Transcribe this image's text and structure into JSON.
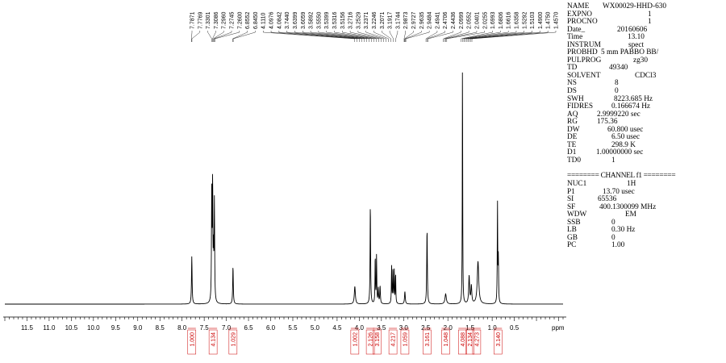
{
  "chart_data": {
    "type": "line",
    "xlabel": "ppm",
    "xlim": [
      12.0,
      -0.6
    ],
    "x_ticks": [
      "11.5",
      "11.0",
      "10.5",
      "10.0",
      "9.5",
      "9.0",
      "8.5",
      "8.0",
      "7.5",
      "7.0",
      "6.5",
      "6.0",
      "5.5",
      "5.0",
      "4.5",
      "4.0",
      "3.5",
      "3.0",
      "2.5",
      "2.0",
      "1.5",
      "1.0",
      "0.5"
    ],
    "peak_labels": [
      "7.7871",
      "7.7769",
      "7.3301",
      "7.3086",
      "7.2960",
      "7.2745",
      "7.2600",
      "6.8552",
      "6.8450",
      "4.1110",
      "4.0976",
      "4.0842",
      "3.7440",
      "3.6399",
      "3.6059",
      "3.5892",
      "3.5550",
      "3.5399",
      "3.5316",
      "3.5156",
      "3.2716",
      "3.2529",
      "3.2371",
      "3.2246",
      "3.2071",
      "3.1917",
      "3.1744",
      "2.9873",
      "2.9727",
      "2.9635",
      "2.9484",
      "2.4941",
      "2.4706",
      "2.4436",
      "2.0999",
      "2.0552",
      "2.0401",
      "2.0255",
      "1.6993",
      "1.6806",
      "1.6616",
      "1.6358",
      "1.5292",
      "1.5103",
      "1.4900",
      "1.4750",
      "1.4570"
    ],
    "peaks": [
      {
        "ppm": 7.78,
        "height": 0.19,
        "width": 0.008
      },
      {
        "ppm": 7.33,
        "height": 0.42,
        "width": 0.007
      },
      {
        "ppm": 7.31,
        "height": 0.46,
        "width": 0.007
      },
      {
        "ppm": 7.29,
        "height": 0.18,
        "width": 0.006
      },
      {
        "ppm": 7.27,
        "height": 0.4,
        "width": 0.007
      },
      {
        "ppm": 6.85,
        "height": 0.15,
        "width": 0.008
      },
      {
        "ppm": 4.1,
        "height": 0.07,
        "width": 0.014
      },
      {
        "ppm": 3.75,
        "height": 0.4,
        "width": 0.007
      },
      {
        "ppm": 3.64,
        "height": 0.19,
        "width": 0.006
      },
      {
        "ppm": 3.61,
        "height": 0.19,
        "width": 0.006
      },
      {
        "ppm": 3.57,
        "height": 0.06,
        "width": 0.008
      },
      {
        "ppm": 3.53,
        "height": 0.07,
        "width": 0.008
      },
      {
        "ppm": 3.27,
        "height": 0.15,
        "width": 0.006
      },
      {
        "ppm": 3.24,
        "height": 0.14,
        "width": 0.006
      },
      {
        "ppm": 3.21,
        "height": 0.13,
        "width": 0.006
      },
      {
        "ppm": 3.18,
        "height": 0.12,
        "width": 0.006
      },
      {
        "ppm": 2.97,
        "height": 0.05,
        "width": 0.01
      },
      {
        "ppm": 2.47,
        "height": 0.3,
        "width": 0.008
      },
      {
        "ppm": 2.05,
        "height": 0.04,
        "width": 0.018
      },
      {
        "ppm": 1.67,
        "height": 1.0,
        "width": 0.005
      },
      {
        "ppm": 1.52,
        "height": 0.11,
        "width": 0.012
      },
      {
        "ppm": 1.47,
        "height": 0.07,
        "width": 0.012
      },
      {
        "ppm": 1.32,
        "height": 0.17,
        "width": 0.02
      },
      {
        "ppm": 0.88,
        "height": 0.4,
        "width": 0.006
      },
      {
        "ppm": 0.86,
        "height": 0.18,
        "width": 0.006
      }
    ],
    "integrals": [
      {
        "ppm": 7.78,
        "value": "1.000"
      },
      {
        "ppm": 7.3,
        "value": "4.134"
      },
      {
        "ppm": 6.85,
        "value": "1.029"
      },
      {
        "ppm": 4.1,
        "value": "1.002"
      },
      {
        "ppm": 3.75,
        "value": "2.126"
      },
      {
        "ppm": 3.6,
        "value": "3.158"
      },
      {
        "ppm": 3.24,
        "value": "4.217"
      },
      {
        "ppm": 2.97,
        "value": "1.059"
      },
      {
        "ppm": 2.47,
        "value": "3.161"
      },
      {
        "ppm": 2.05,
        "value": "1.048"
      },
      {
        "ppm": 1.67,
        "value": "4.088"
      },
      {
        "ppm": 1.5,
        "value": "2.134"
      },
      {
        "ppm": 1.35,
        "value": "4.273"
      },
      {
        "ppm": 0.87,
        "value": "3.140"
      }
    ],
    "colors": {
      "spectrum": "#000000",
      "integral": "#cc0000"
    }
  },
  "params": [
    {
      "key": "NAME",
      "value": "WX00029-HHD-630",
      "vx": 44
    },
    {
      "key": "EXPNO",
      "value": "1",
      "vx": 100
    },
    {
      "key": "PROCNO",
      "value": "1",
      "vx": 100
    },
    {
      "key": "Date_",
      "value": "20160606",
      "vx": 62
    },
    {
      "key": "Time",
      "value": "13.10",
      "vx": 75
    },
    {
      "key": "INSTRUM",
      "value": "spect",
      "vx": 76
    },
    {
      "key": "PROBHD",
      "value": "5 mm PABBO BB/",
      "vx": 42
    },
    {
      "key": "PULPROG",
      "value": "zg30",
      "vx": 82
    },
    {
      "key": "TD",
      "value": "49340",
      "vx": 52
    },
    {
      "key": "SOLVENT",
      "value": "CDCl3",
      "vx": 84
    },
    {
      "key": "NS",
      "value": "8",
      "vx": 59
    },
    {
      "key": "DS",
      "value": "0",
      "vx": 59
    },
    {
      "key": "SWH",
      "value": "8223.685 Hz",
      "vx": 58
    },
    {
      "key": "FIDRES",
      "value": "0.166674 Hz",
      "vx": 55
    },
    {
      "key": "AQ",
      "value": "2.9999220 sec",
      "vx": 37
    },
    {
      "key": "RG",
      "value": "175.36",
      "vx": 37
    },
    {
      "key": "DW",
      "value": "60.800 usec",
      "vx": 50
    },
    {
      "key": "DE",
      "value": "6.50 usec",
      "vx": 55
    },
    {
      "key": "TE",
      "value": "298.9 K",
      "vx": 55
    },
    {
      "key": "D1",
      "value": "1.00000000 sec",
      "vx": 36
    },
    {
      "key": "TD0",
      "value": "1",
      "vx": 55
    }
  ],
  "channel_header": "======== CHANNEL f1 ========",
  "channel_params": [
    {
      "key": "NUC1",
      "value": "1H",
      "vx": 74
    },
    {
      "key": "P1",
      "value": "13.70 usec",
      "vx": 44
    },
    {
      "key": "SI",
      "value": "65536",
      "vx": 38
    },
    {
      "key": "SF",
      "value": "400.1300099 MHz",
      "vx": 40
    },
    {
      "key": "WDW",
      "value": "EM",
      "vx": 72
    },
    {
      "key": "SSB",
      "value": "0",
      "vx": 55
    },
    {
      "key": "LB",
      "value": "0.30 Hz",
      "vx": 55
    },
    {
      "key": "GB",
      "value": "0",
      "vx": 55
    },
    {
      "key": "PC",
      "value": "1.00",
      "vx": 55
    }
  ]
}
